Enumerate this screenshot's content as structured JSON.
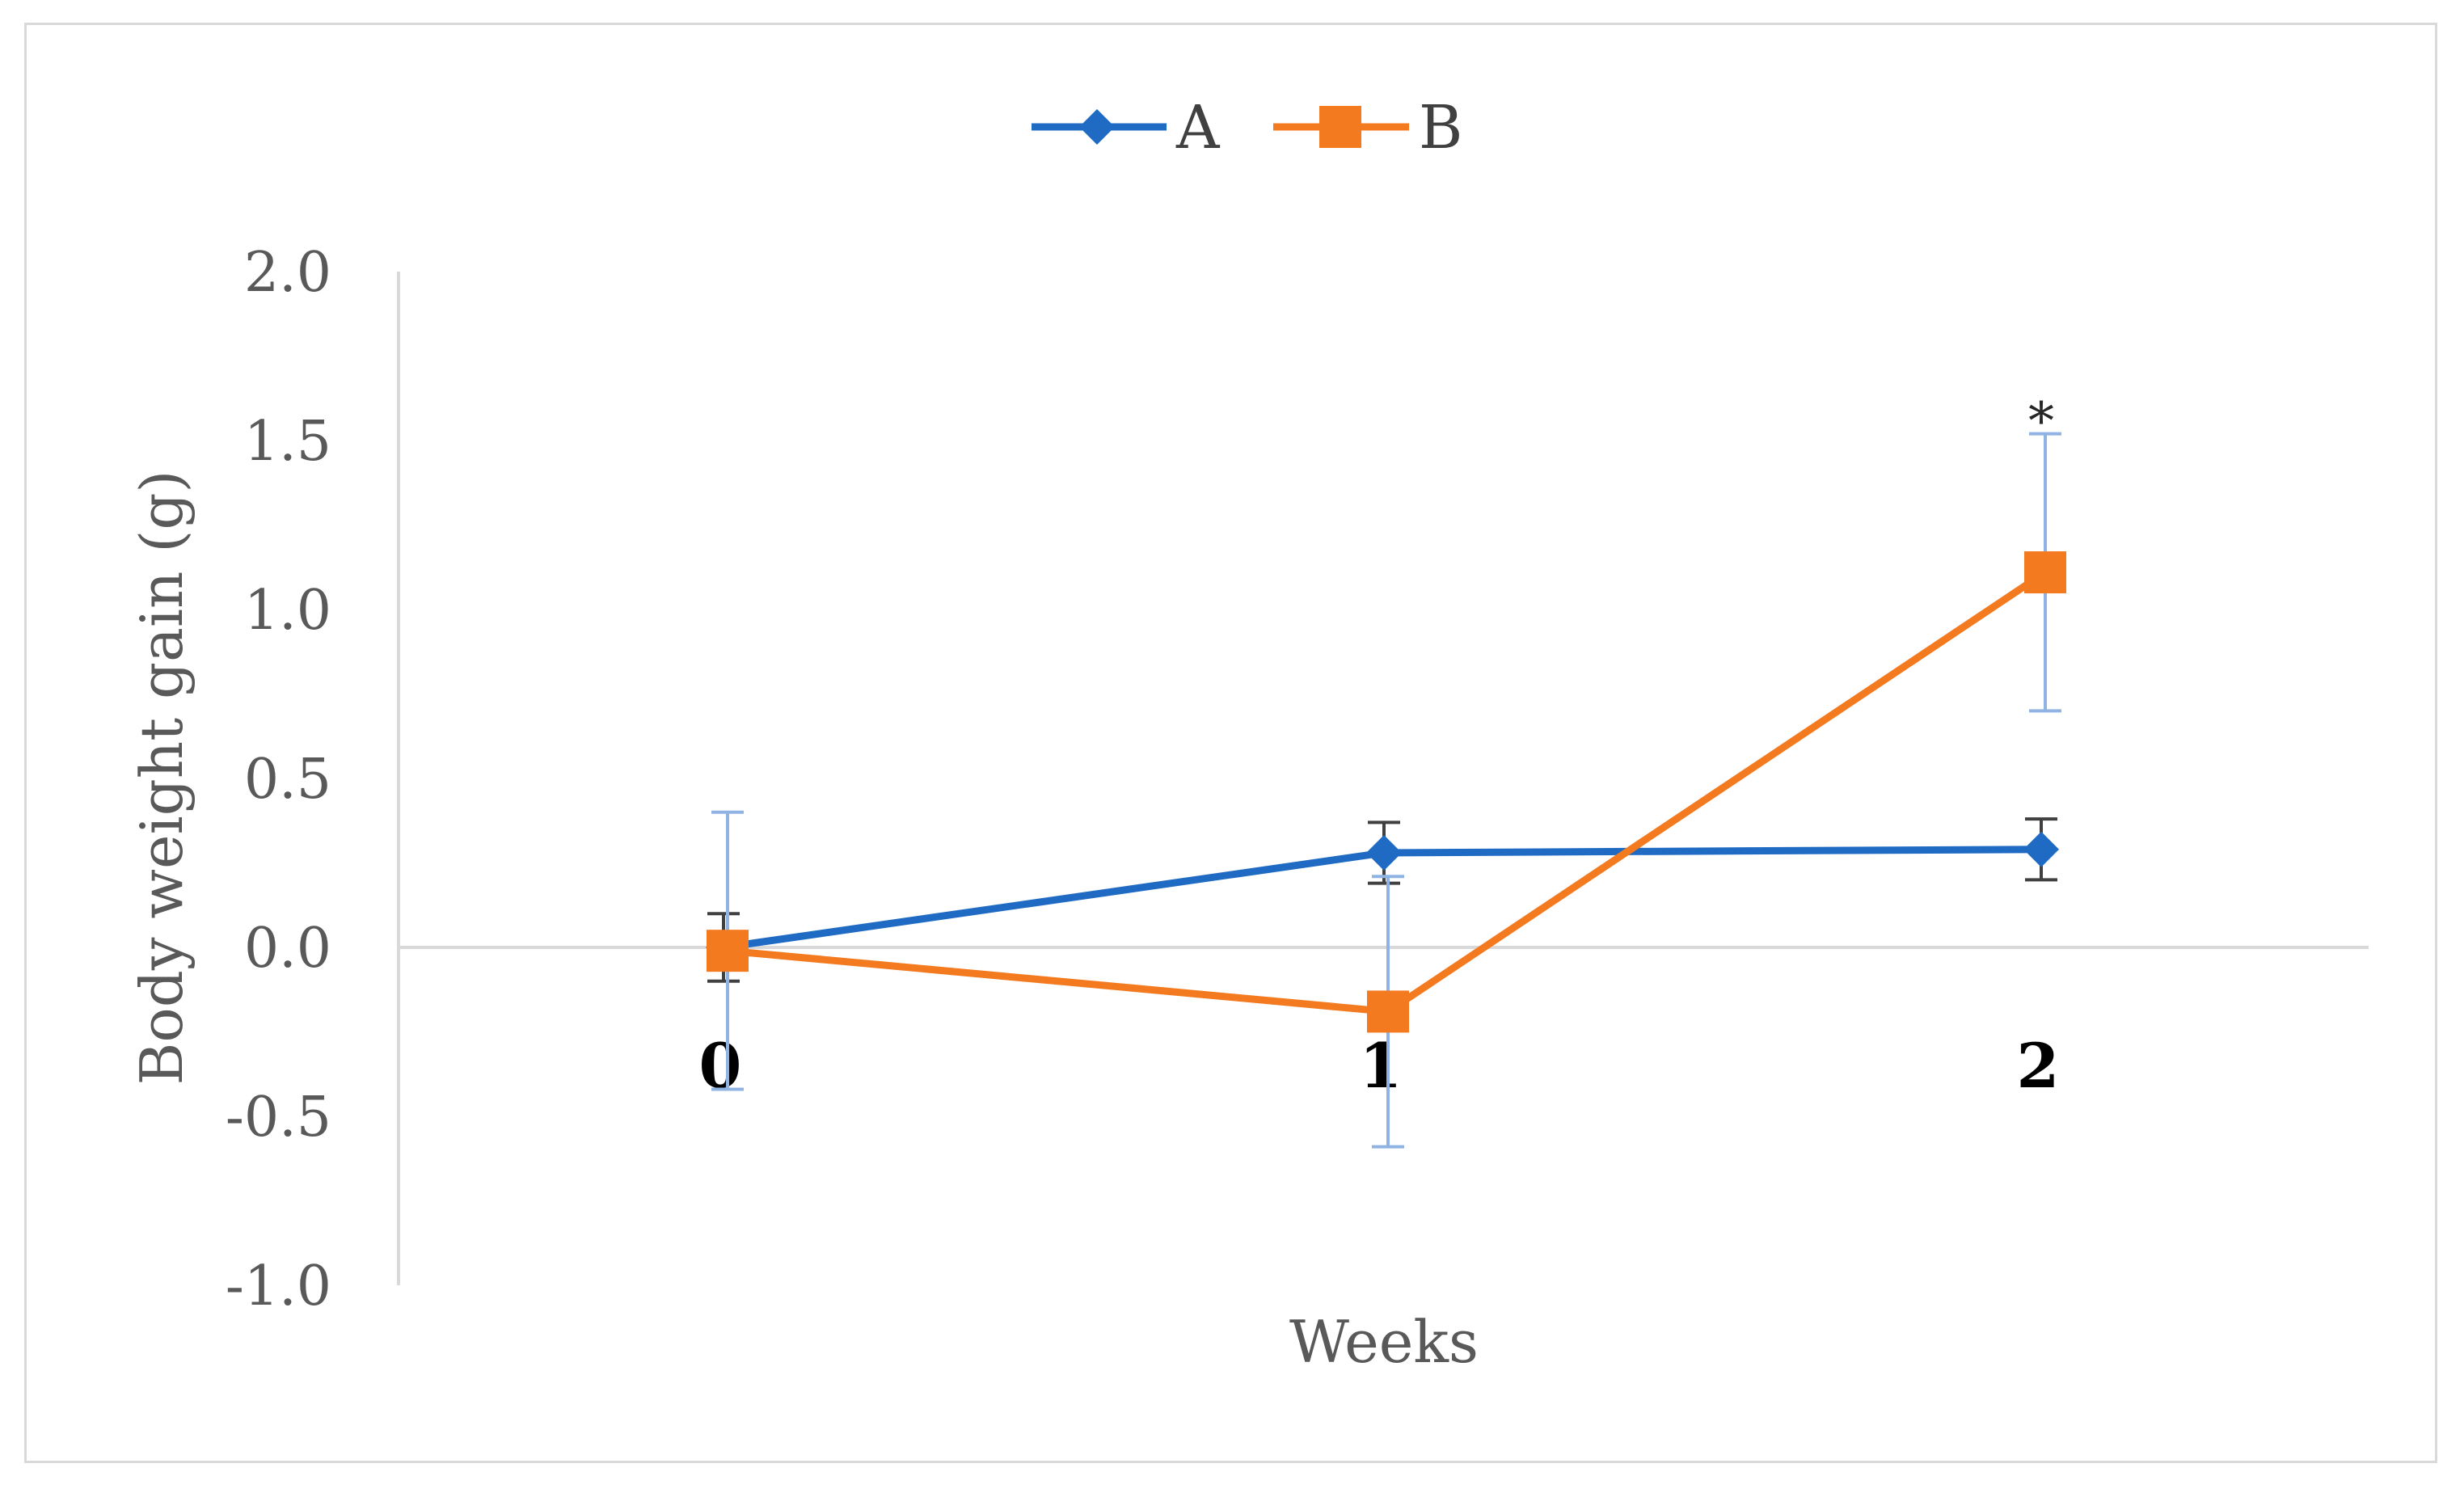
{
  "chart_data": {
    "type": "line",
    "x": [
      0,
      1,
      2
    ],
    "x_tick_labels": [
      "0",
      "1",
      "2"
    ],
    "xlabel": "Weeks",
    "ylabel": "Body weight gain (g)",
    "ylim": [
      -1.0,
      2.0
    ],
    "y_ticks": [
      2.0,
      1.5,
      1.0,
      0.5,
      0.0,
      -0.5,
      -1.0
    ],
    "y_tick_labels": [
      "2.0",
      "1.5",
      "1.0",
      "0.5",
      "0.0",
      "-0.5",
      "-1.0"
    ],
    "grid": false,
    "legend_position": "top-center",
    "series": [
      {
        "name": "A",
        "color": "#1f6bc4",
        "marker": "diamond",
        "values": [
          0.0,
          0.28,
          0.29
        ],
        "error": [
          0.1,
          0.09,
          0.09
        ]
      },
      {
        "name": "B",
        "color": "#f47a20",
        "marker": "square",
        "values": [
          -0.01,
          -0.19,
          1.11
        ],
        "error": [
          0.41,
          0.4,
          0.41
        ]
      }
    ],
    "annotations": [
      {
        "text": "*",
        "x": 2,
        "y": 1.6
      }
    ]
  }
}
